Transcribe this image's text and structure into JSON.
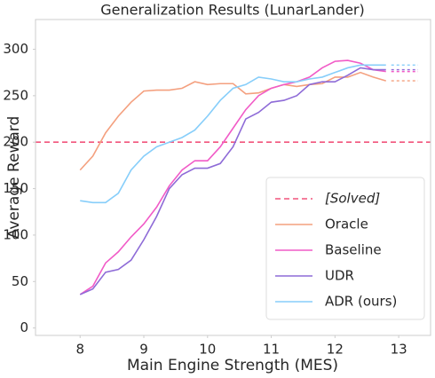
{
  "chart_data": {
    "type": "line",
    "title": "Generalization Results (LunarLander)",
    "x_label": "Main Engine Strength (MES)",
    "y_label": "Average Reward",
    "x": [
      8.0,
      8.2,
      8.4,
      8.6,
      8.8,
      9.0,
      9.2,
      9.4,
      9.6,
      9.8,
      10.0,
      10.2,
      10.4,
      10.6,
      10.8,
      11.0,
      11.2,
      11.4,
      11.6,
      11.8,
      12.0,
      12.2,
      12.4,
      12.6,
      12.8
    ],
    "reference_line": {
      "name": "[Solved]",
      "value": 200,
      "color": "#f2547c"
    },
    "series": [
      {
        "name": "Oracle",
        "color": "#f4a07f",
        "values": [
          170,
          185,
          210,
          228,
          243,
          255,
          256,
          256,
          258,
          265,
          262,
          263,
          263,
          252,
          253,
          258,
          262,
          260,
          262,
          263,
          270,
          270,
          275,
          270,
          266
        ]
      },
      {
        "name": "Baseline",
        "color": "#f15bc7",
        "values": [
          36,
          45,
          70,
          82,
          98,
          112,
          130,
          153,
          170,
          180,
          180,
          195,
          215,
          235,
          250,
          258,
          262,
          265,
          270,
          280,
          287,
          288,
          285,
          278,
          276
        ]
      },
      {
        "name": "UDR",
        "color": "#8e6bd7",
        "values": [
          36,
          42,
          60,
          63,
          73,
          95,
          120,
          150,
          165,
          172,
          172,
          177,
          195,
          225,
          232,
          243,
          245,
          250,
          262,
          265,
          265,
          272,
          280,
          278,
          278
        ]
      },
      {
        "name": "ADR (ours)",
        "color": "#87cefa",
        "values": [
          137,
          135,
          135,
          145,
          170,
          185,
          195,
          200,
          205,
          213,
          228,
          245,
          258,
          262,
          270,
          268,
          265,
          265,
          268,
          270,
          275,
          280,
          283,
          283,
          283
        ]
      }
    ],
    "xlim": [
      7.3,
      13.5
    ],
    "ylim": [
      -8,
      332
    ],
    "xticks": [
      8,
      9,
      10,
      11,
      12,
      13
    ],
    "yticks": [
      0,
      50,
      100,
      150,
      200,
      250,
      300
    ],
    "grid": false,
    "legend": "lower right"
  }
}
